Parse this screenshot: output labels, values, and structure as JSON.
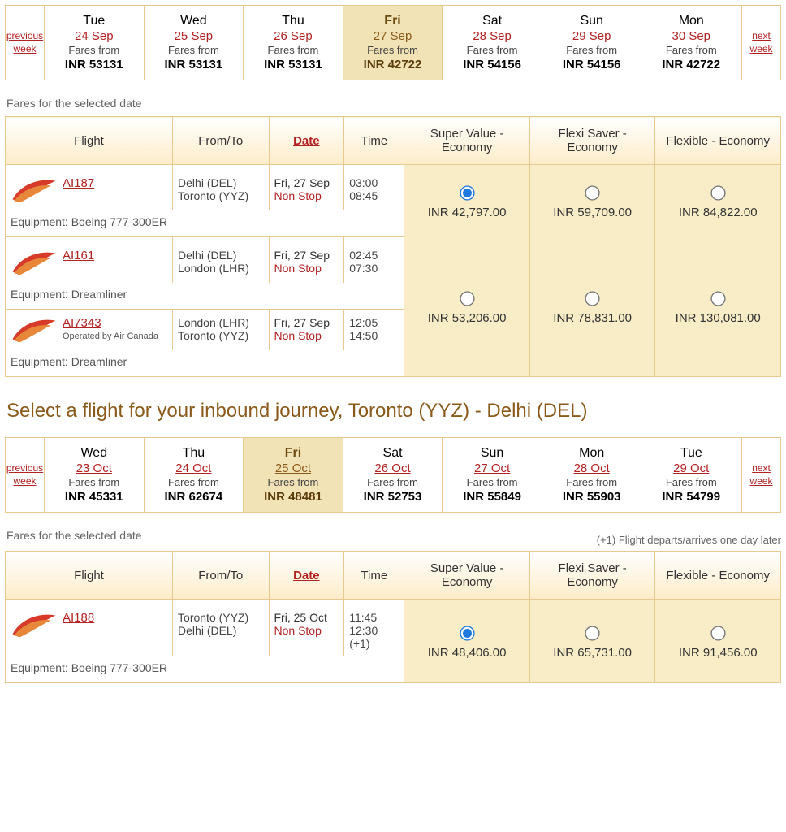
{
  "nav": {
    "prev": "previous week",
    "next": "next week"
  },
  "outbound": {
    "strip": [
      {
        "dow": "Tue",
        "date": "24 Sep",
        "from": "Fares from",
        "price": "INR 53131",
        "selected": false
      },
      {
        "dow": "Wed",
        "date": "25 Sep",
        "from": "Fares from",
        "price": "INR 53131",
        "selected": false
      },
      {
        "dow": "Thu",
        "date": "26 Sep",
        "from": "Fares from",
        "price": "INR 53131",
        "selected": false
      },
      {
        "dow": "Fri",
        "date": "27 Sep",
        "from": "Fares from",
        "price": "INR 42722",
        "selected": true
      },
      {
        "dow": "Sat",
        "date": "28 Sep",
        "from": "Fares from",
        "price": "INR 54156",
        "selected": false
      },
      {
        "dow": "Sun",
        "date": "29 Sep",
        "from": "Fares from",
        "price": "INR 54156",
        "selected": false
      },
      {
        "dow": "Mon",
        "date": "30 Sep",
        "from": "Fares from",
        "price": "INR 42722",
        "selected": false
      }
    ],
    "caption": "Fares for the selected date",
    "headers": {
      "flight": "Flight",
      "fromto": "From/To",
      "date": "Date",
      "time": "Time",
      "c1": "Super Value - Economy",
      "c2": "Flexi Saver - Economy",
      "c3": "Flexible - Economy"
    },
    "rows": [
      {
        "legs": [
          {
            "fnum": "AI187",
            "from": "Delhi (DEL)",
            "to": "Toronto (YYZ)",
            "date": "Fri, 27 Sep",
            "stop": "Non Stop",
            "t1": "03:00",
            "t2": "08:45"
          }
        ],
        "equip": "Equipment: Boeing 777-300ER",
        "fares": {
          "c1": "INR 42,797.00",
          "c2": "INR 59,709.00",
          "c3": "INR 84,822.00"
        },
        "selected": "c1"
      },
      {
        "legs": [
          {
            "fnum": "AI161",
            "from": "Delhi (DEL)",
            "to": "London (LHR)",
            "date": "Fri, 27 Sep",
            "stop": "Non Stop",
            "t1": "02:45",
            "t2": "07:30"
          },
          {
            "fnum": "AI7343",
            "opby": "Operated by Air Canada",
            "from": "London (LHR)",
            "to": "Toronto (YYZ)",
            "date": "Fri, 27 Sep",
            "stop": "Non Stop",
            "t1": "12:05",
            "t2": "14:50"
          }
        ],
        "equip": "Equipment: Dreamliner",
        "equip2": "Equipment: Dreamliner",
        "fares": {
          "c1": "INR 53,206.00",
          "c2": "INR 78,831.00",
          "c3": "INR 130,081.00"
        }
      }
    ]
  },
  "inbound_title": "Select a flight for your inbound journey, Toronto (YYZ) - Delhi (DEL)",
  "inbound": {
    "strip": [
      {
        "dow": "Wed",
        "date": "23 Oct",
        "from": "Fares from",
        "price": "INR 45331",
        "selected": false
      },
      {
        "dow": "Thu",
        "date": "24 Oct",
        "from": "Fares from",
        "price": "INR 62674",
        "selected": false
      },
      {
        "dow": "Fri",
        "date": "25 Oct",
        "from": "Fares from",
        "price": "INR 48481",
        "selected": true
      },
      {
        "dow": "Sat",
        "date": "26 Oct",
        "from": "Fares from",
        "price": "INR 52753",
        "selected": false
      },
      {
        "dow": "Sun",
        "date": "27 Oct",
        "from": "Fares from",
        "price": "INR 55849",
        "selected": false
      },
      {
        "dow": "Mon",
        "date": "28 Oct",
        "from": "Fares from",
        "price": "INR 55903",
        "selected": false
      },
      {
        "dow": "Tue",
        "date": "29 Oct",
        "from": "Fares from",
        "price": "INR 54799",
        "selected": false
      }
    ],
    "caption": "Fares for the selected date",
    "legend": "(+1) Flight departs/arrives one day later",
    "headers": {
      "flight": "Flight",
      "fromto": "From/To",
      "date": "Date",
      "time": "Time",
      "c1": "Super Value - Economy",
      "c2": "Flexi Saver - Economy",
      "c3": "Flexible - Economy"
    },
    "rows": [
      {
        "legs": [
          {
            "fnum": "AI188",
            "from": "Toronto (YYZ)",
            "to": "Delhi (DEL)",
            "date": "Fri, 25 Oct",
            "stop": "Non Stop",
            "t1": "11:45",
            "t2": "12:30 (+1)"
          }
        ],
        "equip": "Equipment: Boeing 777-300ER",
        "fares": {
          "c1": "INR 48,406.00",
          "c2": "INR 65,731.00",
          "c3": "INR 91,456.00"
        },
        "selected": "c1"
      }
    ]
  }
}
